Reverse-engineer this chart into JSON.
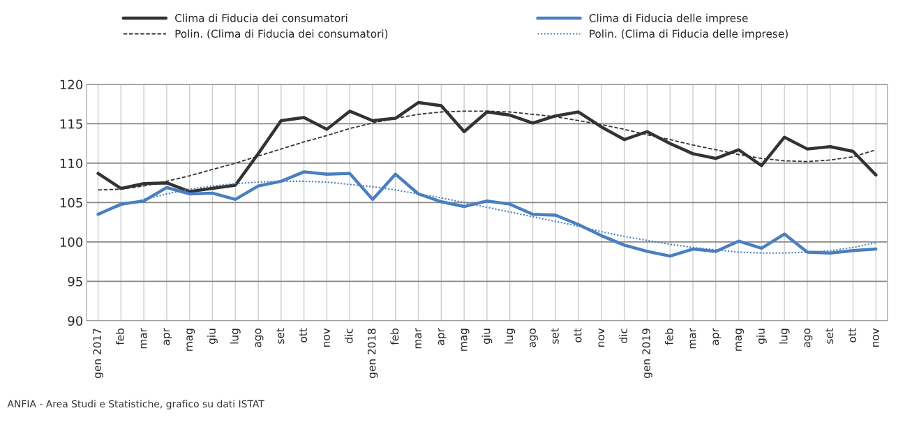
{
  "chart_data": {
    "type": "line",
    "categories": [
      "gen 2017",
      "feb",
      "mar",
      "apr",
      "mag",
      "giu",
      "lug",
      "ago",
      "set",
      "ott",
      "nov",
      "dic",
      "gen 2018",
      "feb",
      "mar",
      "apr",
      "mag",
      "giu",
      "lug",
      "ago",
      "set",
      "ott",
      "nov",
      "dic",
      "gen 2019",
      "feb",
      "mar",
      "apr",
      "mag",
      "giu",
      "lug",
      "ago",
      "set",
      "ott",
      "nov"
    ],
    "series": [
      {
        "name": "Clima di Fiducia dei consumatori",
        "color": "#333333",
        "line_style": "solid",
        "values": [
          108.7,
          106.8,
          107.4,
          107.5,
          106.4,
          106.8,
          107.2,
          111.2,
          115.4,
          115.8,
          114.3,
          116.6,
          115.4,
          115.7,
          117.7,
          117.3,
          114.0,
          116.5,
          116.1,
          115.1,
          116.0,
          116.5,
          114.6,
          113.0,
          114.0,
          112.5,
          111.2,
          110.6,
          111.7,
          109.7,
          113.3,
          111.8,
          112.1,
          111.5,
          108.5
        ]
      },
      {
        "name": "Polin. (Clima di Fiducia dei consumatori)",
        "color": "#333333",
        "line_style": "dashed",
        "values": [
          106.6,
          106.7,
          107.1,
          107.7,
          108.4,
          109.2,
          110.0,
          110.9,
          111.8,
          112.7,
          113.5,
          114.4,
          115.1,
          115.7,
          116.2,
          116.5,
          116.6,
          116.6,
          116.5,
          116.2,
          115.9,
          115.4,
          114.9,
          114.3,
          113.6,
          113.0,
          112.3,
          111.7,
          111.1,
          110.6,
          110.3,
          110.2,
          110.4,
          110.8,
          111.7
        ]
      },
      {
        "name": "Clima di Fiducia delle imprese",
        "color": "#4a7fc0",
        "line_style": "solid",
        "values": [
          103.5,
          104.8,
          105.2,
          106.9,
          106.1,
          106.2,
          105.4,
          107.1,
          107.7,
          108.9,
          108.6,
          108.7,
          105.4,
          108.6,
          106.1,
          105.1,
          104.5,
          105.2,
          104.8,
          103.5,
          103.4,
          102.2,
          100.8,
          99.6,
          98.8,
          98.2,
          99.1,
          98.8,
          100.1,
          99.2,
          101.0,
          98.7,
          98.6,
          98.9,
          99.1
        ]
      },
      {
        "name": "Polin. (Clima di Fiducia delle imprese)",
        "color": "#4a7fc0",
        "line_style": "dotted",
        "values": [
          103.6,
          104.6,
          105.4,
          106.1,
          106.7,
          107.1,
          107.4,
          107.6,
          107.7,
          107.7,
          107.6,
          107.3,
          107.0,
          106.6,
          106.1,
          105.6,
          105.0,
          104.4,
          103.8,
          103.2,
          102.6,
          102.0,
          101.3,
          100.7,
          100.2,
          99.7,
          99.3,
          99.0,
          98.7,
          98.6,
          98.6,
          98.7,
          98.9,
          99.3,
          99.9
        ]
      }
    ],
    "ylim": [
      90,
      120
    ],
    "yticks": [
      90,
      95,
      100,
      105,
      110,
      115,
      120
    ],
    "grid": true,
    "legend": "top",
    "annotations": [
      "ANFIA - Area Studi e Statistiche, grafico su dati ISTAT"
    ]
  }
}
